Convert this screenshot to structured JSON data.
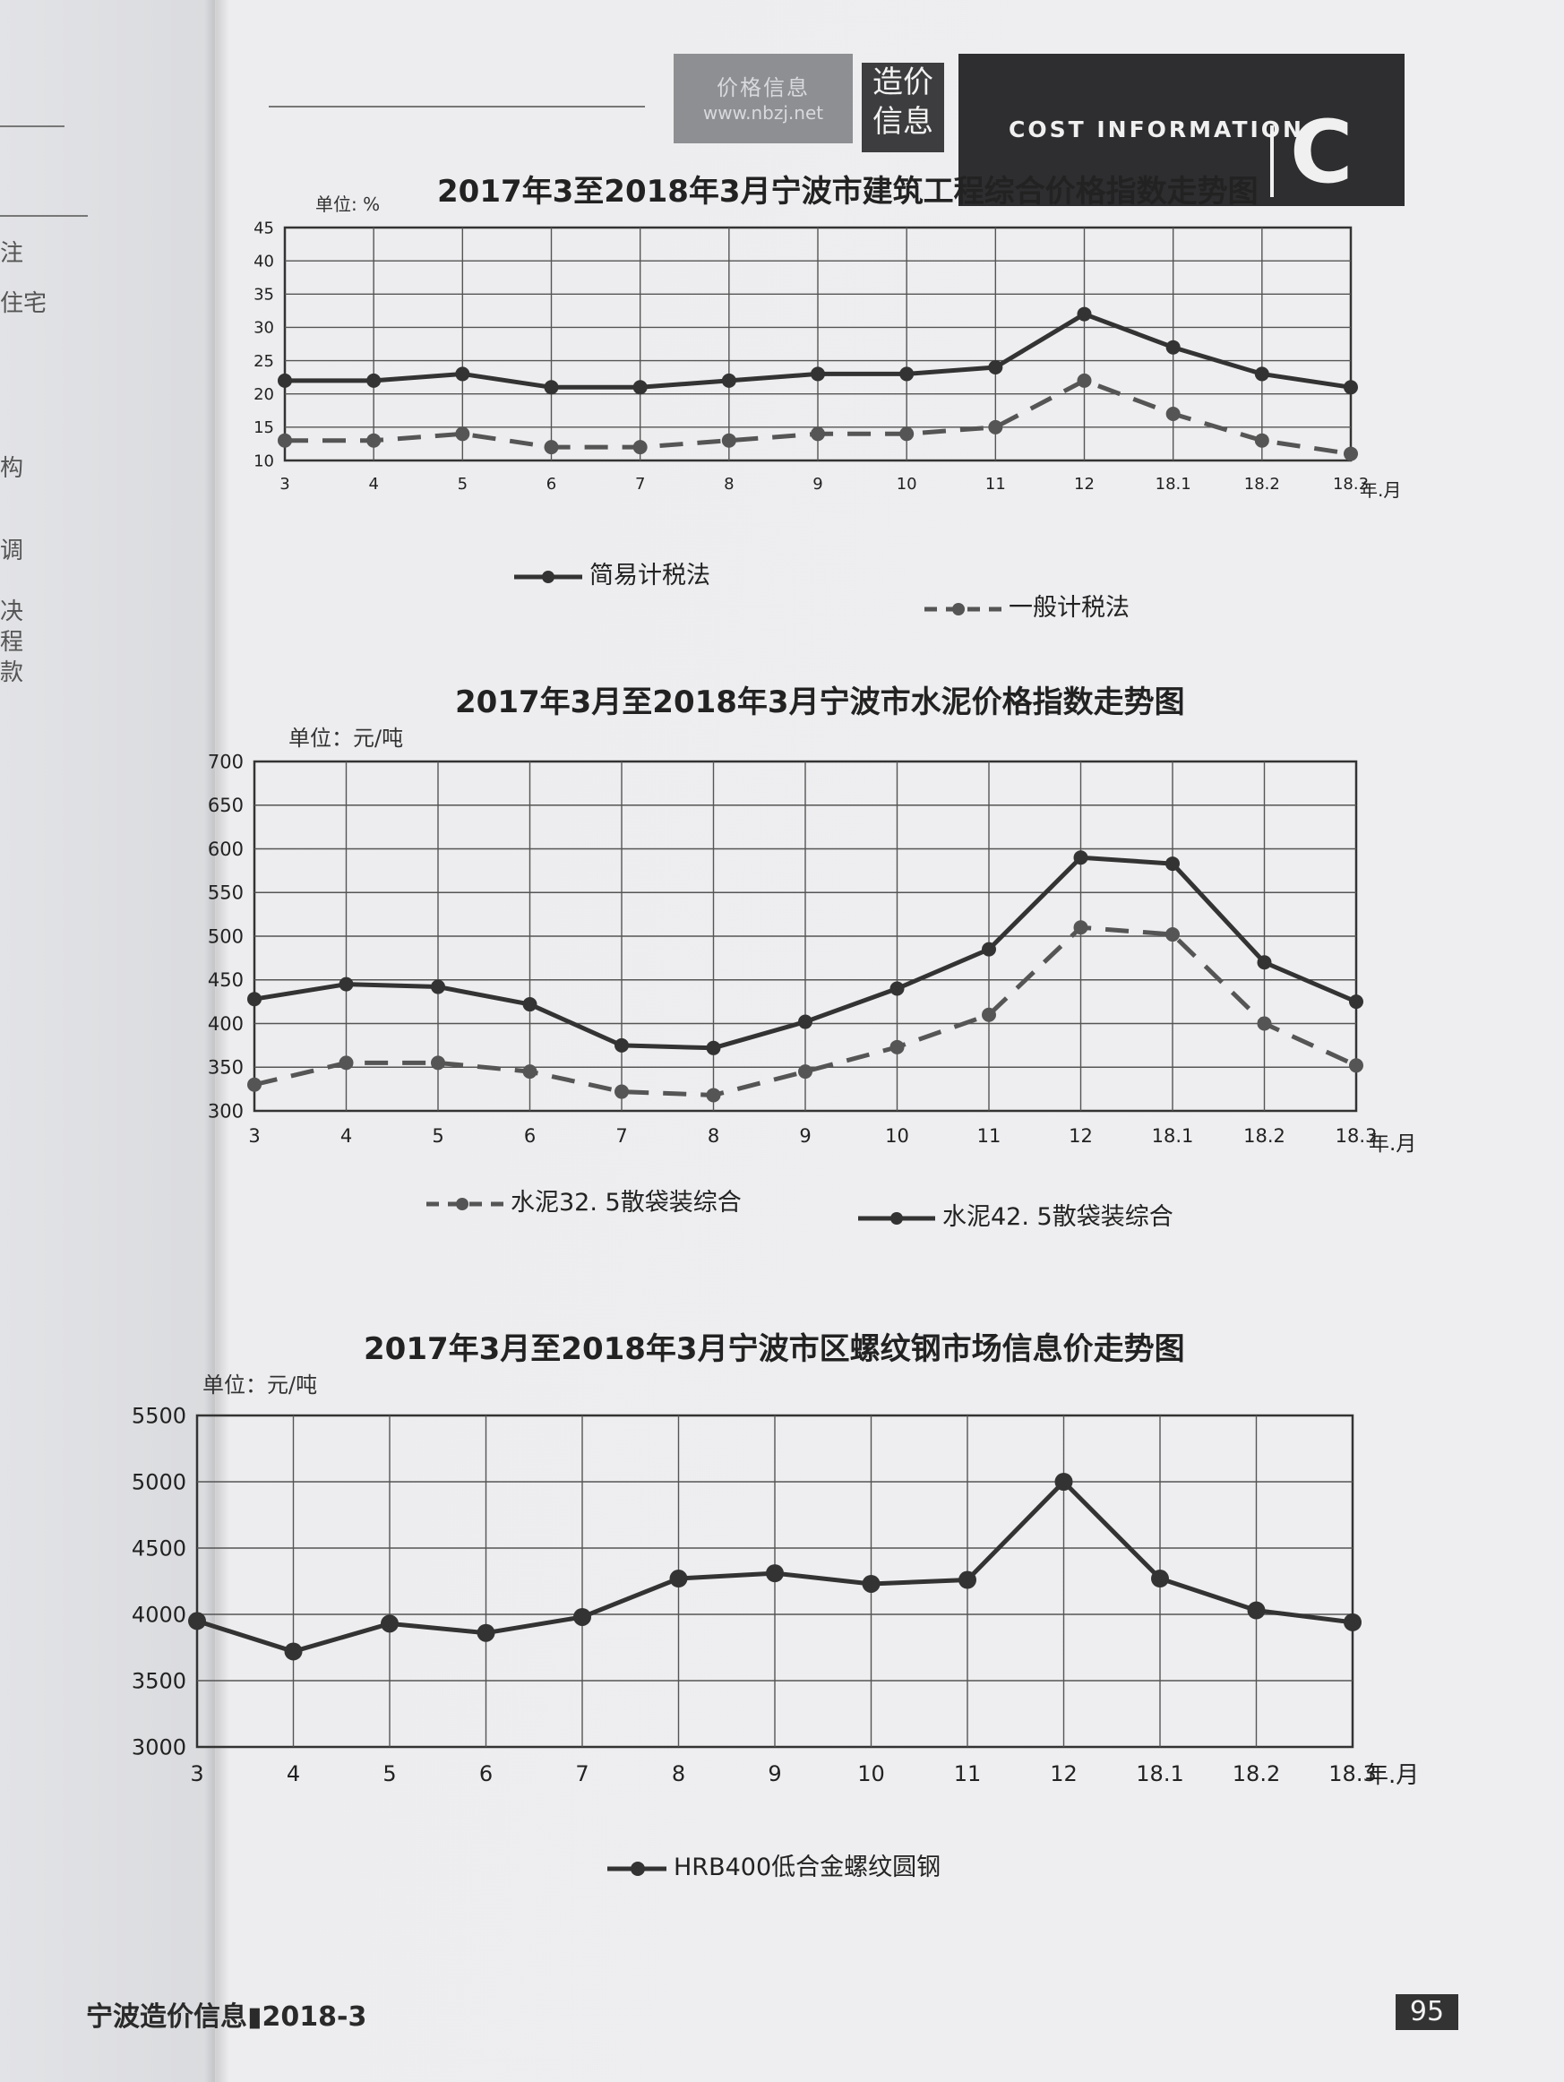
{
  "header": {
    "web_cn": "价格信息",
    "web_url": "www.nbzj.net",
    "zj_line1": "造价",
    "zj_line2": "信息",
    "cost_text": "COST INFORMATION",
    "cost_letter": "C"
  },
  "left_page": {
    "fragments": [
      "注",
      "住宅",
      "构",
      "调",
      "决",
      "程",
      "款"
    ]
  },
  "footer": {
    "journal": "宁波造价信息▮2018-3",
    "page_number": "95"
  },
  "chart_data": [
    {
      "type": "line",
      "title": "2017年3至2018年3月宁波市建筑工程综合价格指数走势图",
      "unit": "单位: %",
      "xlabel": "年.月",
      "categories": [
        "3",
        "4",
        "5",
        "6",
        "7",
        "8",
        "9",
        "10",
        "11",
        "12",
        "18.1",
        "18.2",
        "18.3"
      ],
      "yticks": [
        "45",
        "40",
        "35",
        "30",
        "25",
        "20",
        "15",
        "10"
      ],
      "ylim": [
        10,
        45
      ],
      "grid": true,
      "series": [
        {
          "name": "简易计税法",
          "style": "solid",
          "values": [
            22,
            22,
            23,
            21,
            21,
            22,
            23,
            23,
            24,
            32,
            27,
            23,
            21
          ]
        },
        {
          "name": "一般计税法",
          "style": "dashed",
          "values": [
            13,
            13,
            14,
            12,
            12,
            13,
            14,
            14,
            15,
            22,
            17,
            13,
            11
          ]
        }
      ],
      "colors": {
        "solid": "#333333",
        "dashed": "#555555"
      }
    },
    {
      "type": "line",
      "title": "2017年3月至2018年3月宁波市水泥价格指数走势图",
      "unit": "单位：元/吨",
      "xlabel": "年.月",
      "categories": [
        "3",
        "4",
        "5",
        "6",
        "7",
        "8",
        "9",
        "10",
        "11",
        "12",
        "18.1",
        "18.2",
        "18.3"
      ],
      "yticks": [
        "700",
        "650",
        "600",
        "550",
        "500",
        "450",
        "400",
        "350",
        "300"
      ],
      "ylim": [
        300,
        700
      ],
      "grid": true,
      "series": [
        {
          "name": "水泥32. 5散袋装综合",
          "style": "dashed",
          "values": [
            330,
            355,
            355,
            345,
            322,
            318,
            345,
            373,
            410,
            510,
            502,
            400,
            352
          ]
        },
        {
          "name": "水泥42. 5散袋装综合",
          "style": "solid",
          "values": [
            428,
            445,
            442,
            422,
            375,
            372,
            402,
            440,
            485,
            590,
            583,
            470,
            425
          ]
        }
      ],
      "colors": {
        "solid": "#333333",
        "dashed": "#555555"
      }
    },
    {
      "type": "line",
      "title": "2017年3月至2018年3月宁波市区螺纹钢市场信息价走势图",
      "unit": "单位：元/吨",
      "xlabel": "年.月",
      "categories": [
        "3",
        "4",
        "5",
        "6",
        "7",
        "8",
        "9",
        "10",
        "11",
        "12",
        "18.1",
        "18.2",
        "18.3"
      ],
      "yticks": [
        "5500",
        "5000",
        "4500",
        "4000",
        "3500",
        "3000"
      ],
      "ylim": [
        3000,
        5500
      ],
      "grid": true,
      "series": [
        {
          "name": "HRB400低合金螺纹圆钢",
          "style": "solid",
          "values": [
            3950,
            3720,
            3930,
            3860,
            3980,
            4270,
            4310,
            4230,
            4260,
            5000,
            4270,
            4030,
            3940
          ]
        }
      ],
      "colors": {
        "solid": "#333333"
      }
    }
  ]
}
